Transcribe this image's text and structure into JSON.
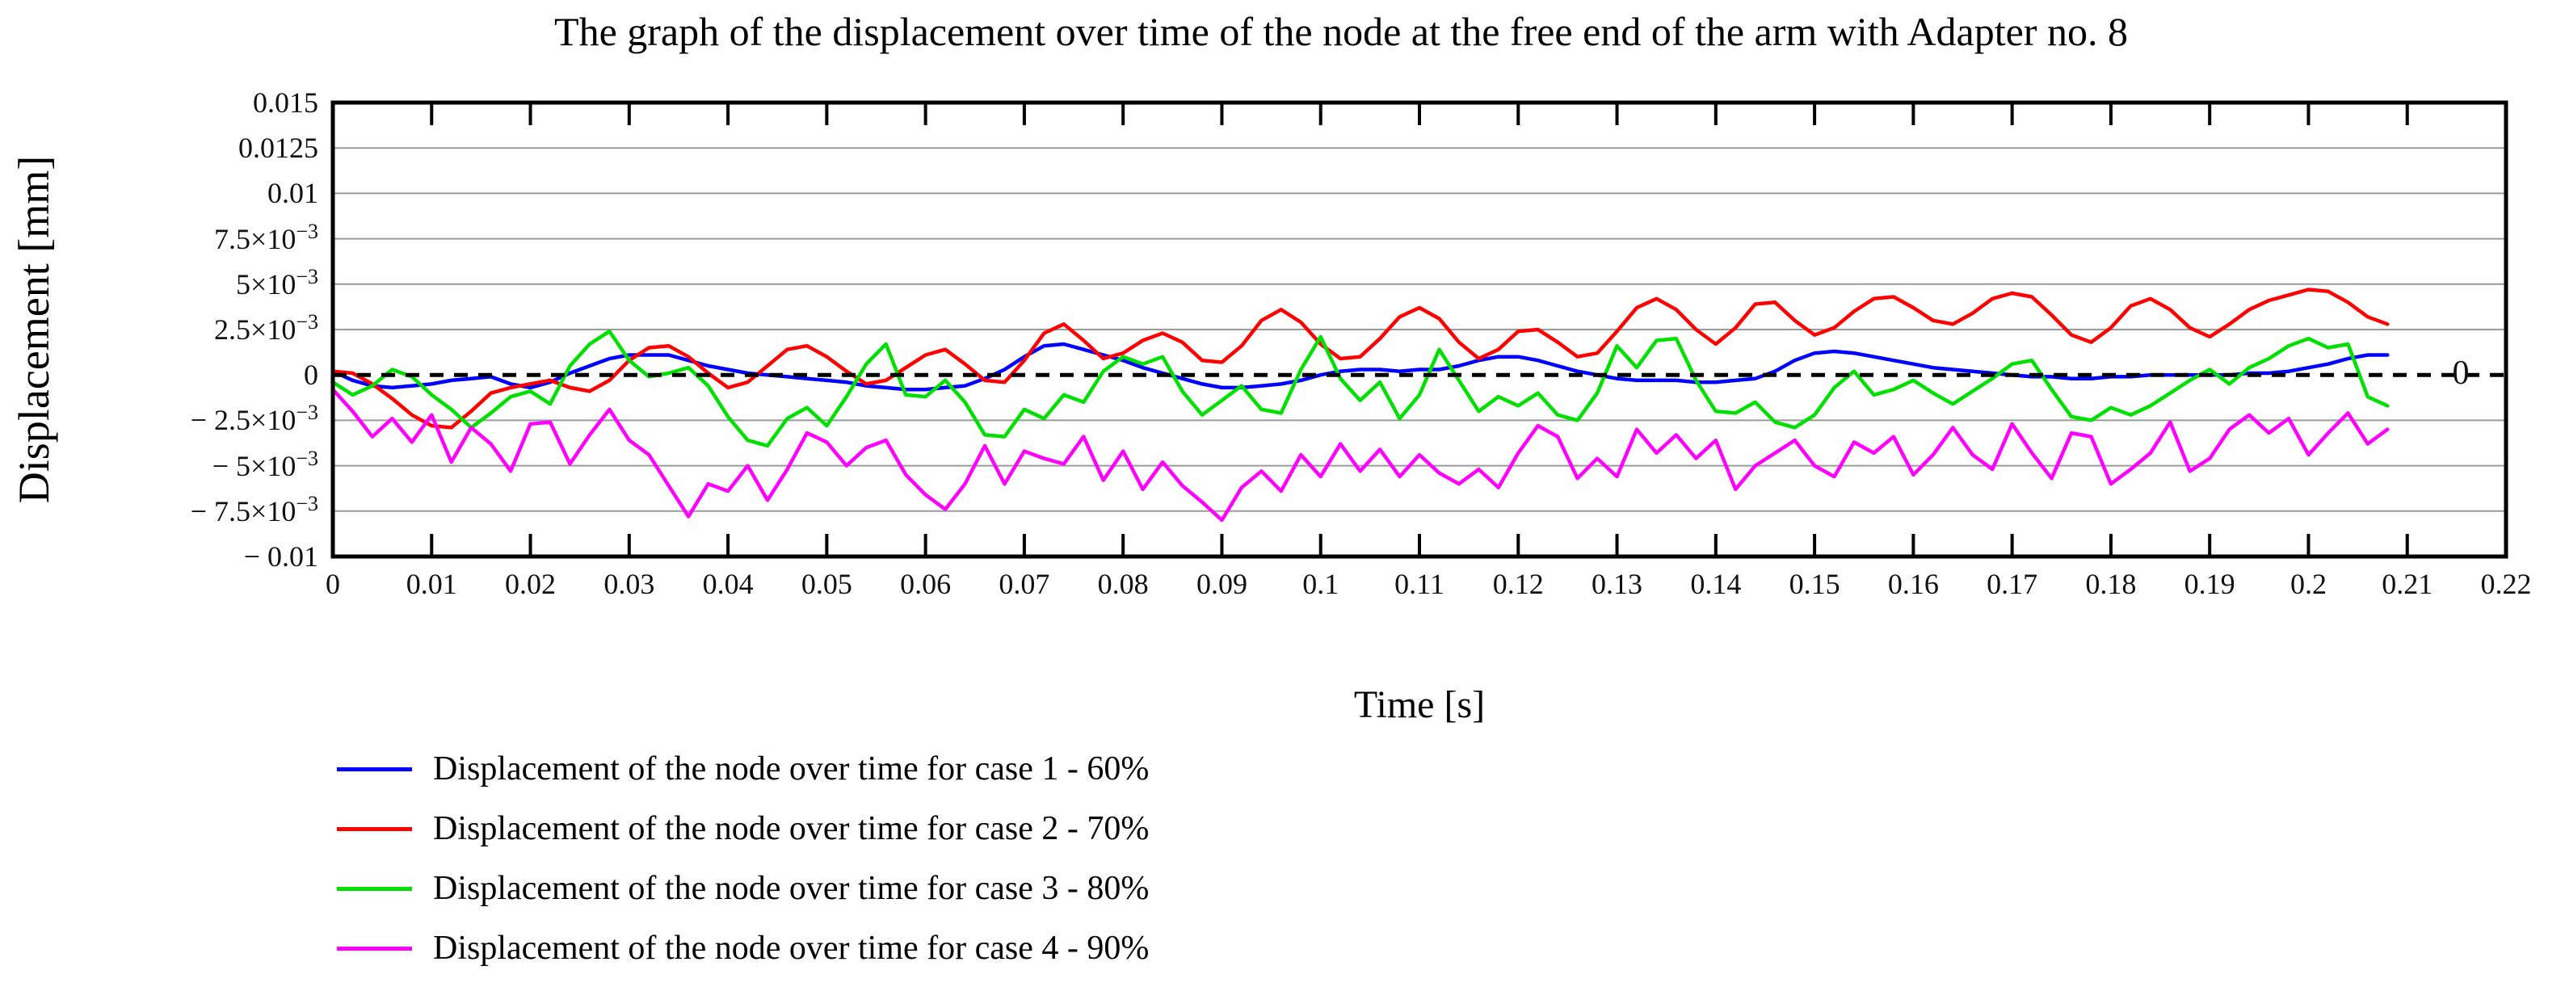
{
  "chart_data": {
    "type": "line",
    "title": "The graph of the displacement over time of the node at the free end of the arm with Adapter no. 8",
    "xlabel": "Time [s]",
    "ylabel": "Displacement [mm]",
    "xlim": [
      0,
      0.22
    ],
    "ylim": [
      -0.01,
      0.015
    ],
    "grid": "horizontal gray gridlines; x-axis shown as inward tick marks on top and bottom edges",
    "legend_position": "below plot, bottom-left",
    "zero_marker_label": "0",
    "zero_line": {
      "value": 0,
      "style": "dashed",
      "color": "#000000"
    },
    "x_tick_step": 0.01,
    "x_tick_labels": [
      "0",
      "0.01",
      "0.02",
      "0.03",
      "0.04",
      "0.05",
      "0.06",
      "0.07",
      "0.08",
      "0.09",
      "0.1",
      "0.11",
      "0.12",
      "0.13",
      "0.14",
      "0.15",
      "0.16",
      "0.17",
      "0.18",
      "0.19",
      "0.2",
      "0.21",
      "0.22"
    ],
    "y_ticks": [
      {
        "value": 0.015,
        "label": "0.015"
      },
      {
        "value": 0.0125,
        "label": "0.0125"
      },
      {
        "value": 0.01,
        "label": "0.01"
      },
      {
        "value": 0.0075,
        "label": "7.5×10^−3"
      },
      {
        "value": 0.005,
        "label": "5×10^−3"
      },
      {
        "value": 0.0025,
        "label": "2.5×10^−3"
      },
      {
        "value": 0,
        "label": "0"
      },
      {
        "value": -0.0025,
        "label": "− 2.5×10^−3"
      },
      {
        "value": -0.005,
        "label": "− 5×10^−3"
      },
      {
        "value": -0.0075,
        "label": "− 7.5×10^−3"
      },
      {
        "value": -0.01,
        "label": "− 0.01"
      }
    ],
    "y_gridline_values": [
      0.0125,
      0.01,
      0.0075,
      0.005,
      0.0025,
      -0.0025,
      -0.005,
      -0.0075
    ],
    "style": {
      "background": "#ffffff",
      "border_color": "#000000",
      "gridline_color": "#9a9a9a",
      "tick_color": "#000000",
      "line_width": 4.5
    },
    "t_start": 0,
    "t_step": 0.002,
    "value_scale": 0.001,
    "value_unit_note": "series values are displacement in mm multiplied by 1000 (i.e. ×10⁻³ mm)",
    "series": [
      {
        "name": "Displacement of the node over time for case 1 - 60%",
        "color": "#0000ff",
        "values": [
          0.2,
          -0.3,
          -0.6,
          -0.7,
          -0.6,
          -0.5,
          -0.3,
          -0.2,
          -0.1,
          -0.5,
          -0.7,
          -0.4,
          0.1,
          0.5,
          0.9,
          1.1,
          1.1,
          1.1,
          0.8,
          0.5,
          0.3,
          0.1,
          0.0,
          -0.1,
          -0.2,
          -0.3,
          -0.4,
          -0.6,
          -0.7,
          -0.8,
          -0.8,
          -0.7,
          -0.6,
          -0.2,
          0.3,
          1.0,
          1.6,
          1.7,
          1.4,
          1.1,
          0.8,
          0.4,
          0.1,
          -0.2,
          -0.5,
          -0.7,
          -0.7,
          -0.6,
          -0.5,
          -0.3,
          0.0,
          0.2,
          0.3,
          0.3,
          0.2,
          0.3,
          0.3,
          0.5,
          0.8,
          1.0,
          1.0,
          0.8,
          0.5,
          0.2,
          0.0,
          -0.2,
          -0.3,
          -0.3,
          -0.3,
          -0.4,
          -0.4,
          -0.3,
          -0.2,
          0.2,
          0.8,
          1.2,
          1.3,
          1.2,
          1.0,
          0.8,
          0.6,
          0.4,
          0.3,
          0.2,
          0.1,
          0.0,
          -0.1,
          -0.1,
          -0.2,
          -0.2,
          -0.1,
          -0.1,
          0.0,
          0.0,
          0.0,
          0.0,
          0.0,
          0.1,
          0.1,
          0.2,
          0.4,
          0.6,
          0.9,
          1.1,
          1.1
        ]
      },
      {
        "name": "Displacement of the node over time for case 2 - 70%",
        "color": "#ff0000",
        "values": [
          0.2,
          0.1,
          -0.5,
          -1.3,
          -2.2,
          -2.8,
          -2.9,
          -2.0,
          -1.0,
          -0.7,
          -0.5,
          -0.3,
          -0.7,
          -0.9,
          -0.3,
          0.8,
          1.5,
          1.6,
          1.0,
          0.1,
          -0.7,
          -0.4,
          0.5,
          1.4,
          1.6,
          1.0,
          0.2,
          -0.5,
          -0.3,
          0.4,
          1.1,
          1.4,
          0.6,
          -0.3,
          -0.4,
          0.8,
          2.3,
          2.8,
          1.9,
          0.9,
          1.2,
          1.9,
          2.3,
          1.8,
          0.8,
          0.7,
          1.6,
          3.0,
          3.6,
          2.9,
          1.7,
          0.9,
          1.0,
          2.0,
          3.2,
          3.7,
          3.1,
          1.8,
          0.9,
          1.4,
          2.4,
          2.5,
          1.8,
          1.0,
          1.2,
          2.4,
          3.7,
          4.2,
          3.6,
          2.5,
          1.7,
          2.6,
          3.9,
          4.0,
          3.0,
          2.2,
          2.6,
          3.5,
          4.2,
          4.3,
          3.7,
          3.0,
          2.8,
          3.4,
          4.2,
          4.5,
          4.3,
          3.3,
          2.2,
          1.8,
          2.6,
          3.8,
          4.2,
          3.6,
          2.6,
          2.1,
          2.8,
          3.6,
          4.1,
          4.4,
          4.7,
          4.6,
          4.0,
          3.2,
          2.8
        ]
      },
      {
        "name": "Displacement of the node over time for case 3 - 80%",
        "color": "#00e000",
        "values": [
          -0.4,
          -1.1,
          -0.6,
          0.3,
          -0.1,
          -1.1,
          -1.9,
          -2.9,
          -2.1,
          -1.2,
          -0.9,
          -1.6,
          0.5,
          1.7,
          2.4,
          0.8,
          -0.1,
          0.1,
          0.4,
          -0.6,
          -2.3,
          -3.6,
          -3.9,
          -2.4,
          -1.8,
          -2.8,
          -1.2,
          0.6,
          1.7,
          -1.1,
          -1.2,
          -0.3,
          -1.5,
          -3.3,
          -3.4,
          -1.9,
          -2.4,
          -1.1,
          -1.5,
          0.2,
          1.0,
          0.6,
          1.0,
          -0.9,
          -2.2,
          -1.4,
          -0.6,
          -1.9,
          -2.1,
          0.3,
          2.1,
          -0.2,
          -1.4,
          -0.4,
          -2.4,
          -1.1,
          1.4,
          -0.3,
          -2.0,
          -1.2,
          -1.7,
          -1.0,
          -2.2,
          -2.5,
          -1.0,
          1.6,
          0.4,
          1.9,
          2.0,
          -0.3,
          -2.0,
          -2.1,
          -1.5,
          -2.6,
          -2.9,
          -2.2,
          -0.7,
          0.2,
          -1.1,
          -0.8,
          -0.3,
          -1.0,
          -1.6,
          -0.9,
          -0.2,
          0.6,
          0.8,
          -0.8,
          -2.3,
          -2.5,
          -1.8,
          -2.2,
          -1.7,
          -1.0,
          -0.3,
          0.3,
          -0.5,
          0.4,
          0.9,
          1.6,
          2.0,
          1.5,
          1.7,
          -1.2,
          -1.7
        ]
      },
      {
        "name": "Displacement of the node over time for case 4 - 90%",
        "color": "#ff00ff",
        "values": [
          -0.8,
          -2.0,
          -3.4,
          -2.4,
          -3.7,
          -2.2,
          -4.8,
          -2.9,
          -3.8,
          -5.3,
          -2.7,
          -2.6,
          -4.9,
          -3.3,
          -1.9,
          -3.6,
          -4.4,
          -6.1,
          -7.8,
          -6.0,
          -6.4,
          -5.0,
          -6.9,
          -5.2,
          -3.2,
          -3.7,
          -5.0,
          -4.0,
          -3.6,
          -5.5,
          -6.6,
          -7.4,
          -6.0,
          -3.9,
          -6.0,
          -4.2,
          -4.6,
          -4.9,
          -3.4,
          -5.8,
          -4.2,
          -6.3,
          -4.8,
          -6.1,
          -7.0,
          -8.0,
          -6.2,
          -5.3,
          -6.4,
          -4.4,
          -5.6,
          -3.8,
          -5.3,
          -4.1,
          -5.6,
          -4.4,
          -5.4,
          -6.0,
          -5.2,
          -6.2,
          -4.3,
          -2.8,
          -3.4,
          -5.7,
          -4.6,
          -5.6,
          -3.0,
          -4.3,
          -3.3,
          -4.6,
          -3.6,
          -6.3,
          -5.0,
          -4.3,
          -3.6,
          -5.0,
          -5.6,
          -3.7,
          -4.3,
          -3.4,
          -5.5,
          -4.4,
          -2.9,
          -4.4,
          -5.2,
          -2.7,
          -4.3,
          -5.7,
          -3.2,
          -3.4,
          -6.0,
          -5.2,
          -4.3,
          -2.6,
          -5.3,
          -4.6,
          -3.0,
          -2.2,
          -3.2,
          -2.4,
          -4.4,
          -3.2,
          -2.1,
          -3.8,
          -3.0
        ]
      }
    ]
  }
}
